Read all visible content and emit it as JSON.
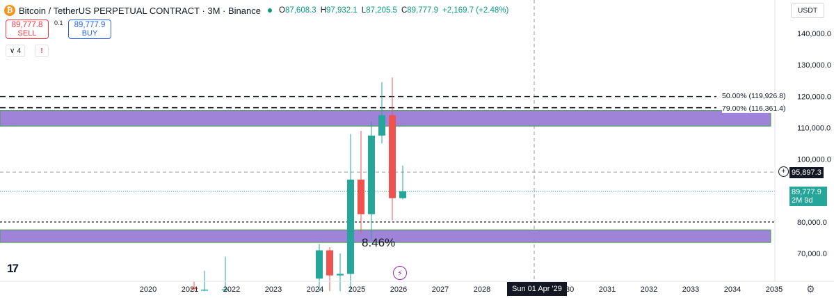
{
  "header": {
    "logo_icon": "bitcoin-icon",
    "logo_glyph": "₿",
    "symbol": "Bitcoin / TetherUS PERPETUAL CONTRACT · 3M · Binance",
    "open_label": "O",
    "open_value": "87,608.3",
    "high_label": "H",
    "high_value": "97,932.1",
    "low_label": "L",
    "low_value": "87,205.5",
    "close_label": "C",
    "close_value": "89,777.9",
    "change": "+2,169.7 (+2.48%)"
  },
  "trade": {
    "sell_price": "89,777.8",
    "sell_label": "SELL",
    "spread": "0.1",
    "buy_price": "89,777.9",
    "buy_label": "BUY"
  },
  "indicators": {
    "count": "∨ 4",
    "warn": "!"
  },
  "currency_selector": "USDT",
  "price_tags": {
    "crosshair_price": "95,897.3",
    "last_price": "89,777.9",
    "countdown": "2M 9d"
  },
  "fib_labels": {
    "upper": "50.00% (119,926.8)",
    "lower": "79.00% (116,361.4)"
  },
  "percent_label": "8.46%",
  "crosshair_date": "Sun 01 Apr '29",
  "tv_logo": "17",
  "event_glyph": "⚡",
  "settings_glyph": "⚙",
  "plus_glyph": "+",
  "colors": {
    "up": "#26a69a",
    "down": "#ef5350",
    "zone_fill": "#9f83d8",
    "zone_border": "#43a047",
    "price_line": "#089981",
    "text": "#131722"
  },
  "chart_data": {
    "type": "candlestick",
    "timeframe": "3M",
    "ylim": [
      58000,
      148000
    ],
    "y_ticks": [
      70000,
      80000,
      90000,
      100000,
      110000,
      120000,
      130000,
      140000
    ],
    "y_tick_labels": [
      "70,000.0",
      "80,000.0",
      "90,000.0",
      "100,000.0",
      "110,000.0",
      "120,000.0",
      "130,000.0",
      "140,000.0"
    ],
    "x_ticks": [
      2020,
      2021,
      2022,
      2023,
      2024,
      2025,
      2026,
      2027,
      2028,
      2029,
      2030,
      2031,
      2032,
      2033,
      2034,
      2035
    ],
    "x_tick_labels": [
      "2020",
      "2021",
      "2022",
      "2023",
      "2024",
      "2025",
      "2026",
      "2027",
      "2028",
      "2030",
      "2031",
      "2032",
      "2033",
      "2034",
      "2035"
    ],
    "candles": [
      {
        "t": 2021.0,
        "o": 59000,
        "h": 61000,
        "l": 58000,
        "c": 58800
      },
      {
        "t": 2021.25,
        "o": 58500,
        "h": 64500,
        "l": 58000,
        "c": 58500
      },
      {
        "t": 2021.75,
        "o": 58500,
        "h": 69000,
        "l": 58000,
        "c": 58600
      },
      {
        "t": 2024.0,
        "o": 62000,
        "h": 73000,
        "l": 58000,
        "c": 71000
      },
      {
        "t": 2024.25,
        "o": 71000,
        "h": 72000,
        "l": 58000,
        "c": 63000
      },
      {
        "t": 2024.5,
        "o": 63000,
        "h": 70000,
        "l": 58000,
        "c": 63500
      },
      {
        "t": 2024.75,
        "o": 63500,
        "h": 108000,
        "l": 58000,
        "c": 93500
      },
      {
        "t": 2025.0,
        "o": 93500,
        "h": 109000,
        "l": 76500,
        "c": 82500
      },
      {
        "t": 2025.25,
        "o": 82500,
        "h": 112000,
        "l": 74500,
        "c": 107500
      },
      {
        "t": 2025.5,
        "o": 107500,
        "h": 124500,
        "l": 105000,
        "c": 114000
      },
      {
        "t": 2025.75,
        "o": 114000,
        "h": 126000,
        "l": 80500,
        "c": 87600
      },
      {
        "t": 2026.0,
        "o": 87600,
        "h": 97900,
        "l": 87200,
        "c": 89800
      }
    ],
    "zones": [
      {
        "low": 110500,
        "high": 115500
      },
      {
        "low": 73500,
        "high": 77500
      }
    ],
    "fib_levels": [
      119926.8,
      116361.4
    ],
    "horizontal_lines": {
      "crosshair": 95897.3,
      "last_price": 89777.9,
      "dotted_support": 80000
    },
    "crosshair_time": 2029.25
  }
}
